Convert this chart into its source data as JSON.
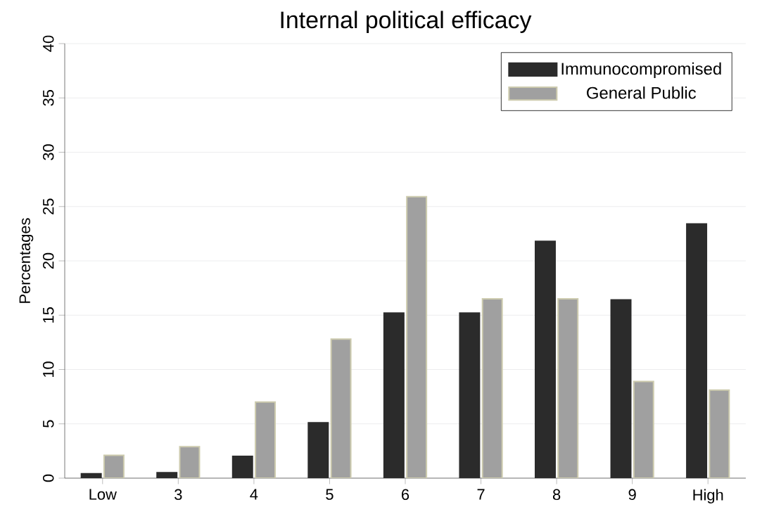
{
  "chart_data": {
    "type": "bar",
    "title": "Internal political efficacy",
    "ylabel": "Percentages",
    "categories": [
      "Low",
      "3",
      "4",
      "5",
      "6",
      "7",
      "8",
      "9",
      "High"
    ],
    "series": [
      {
        "name": "Immunocompromised",
        "color": "#2b2b2b",
        "values": [
          0.4,
          0.5,
          2.0,
          5.1,
          15.2,
          15.2,
          21.8,
          16.4,
          23.4
        ]
      },
      {
        "name": "General Public",
        "color": "#a0a0a0",
        "values": [
          2.1,
          2.9,
          7.0,
          12.8,
          25.9,
          16.5,
          16.5,
          8.9,
          8.1
        ]
      }
    ],
    "ylim": [
      0,
      40
    ],
    "yticks": [
      0,
      5,
      10,
      15,
      20,
      25,
      30,
      35,
      40
    ],
    "grid": "y",
    "legend": "top right"
  }
}
